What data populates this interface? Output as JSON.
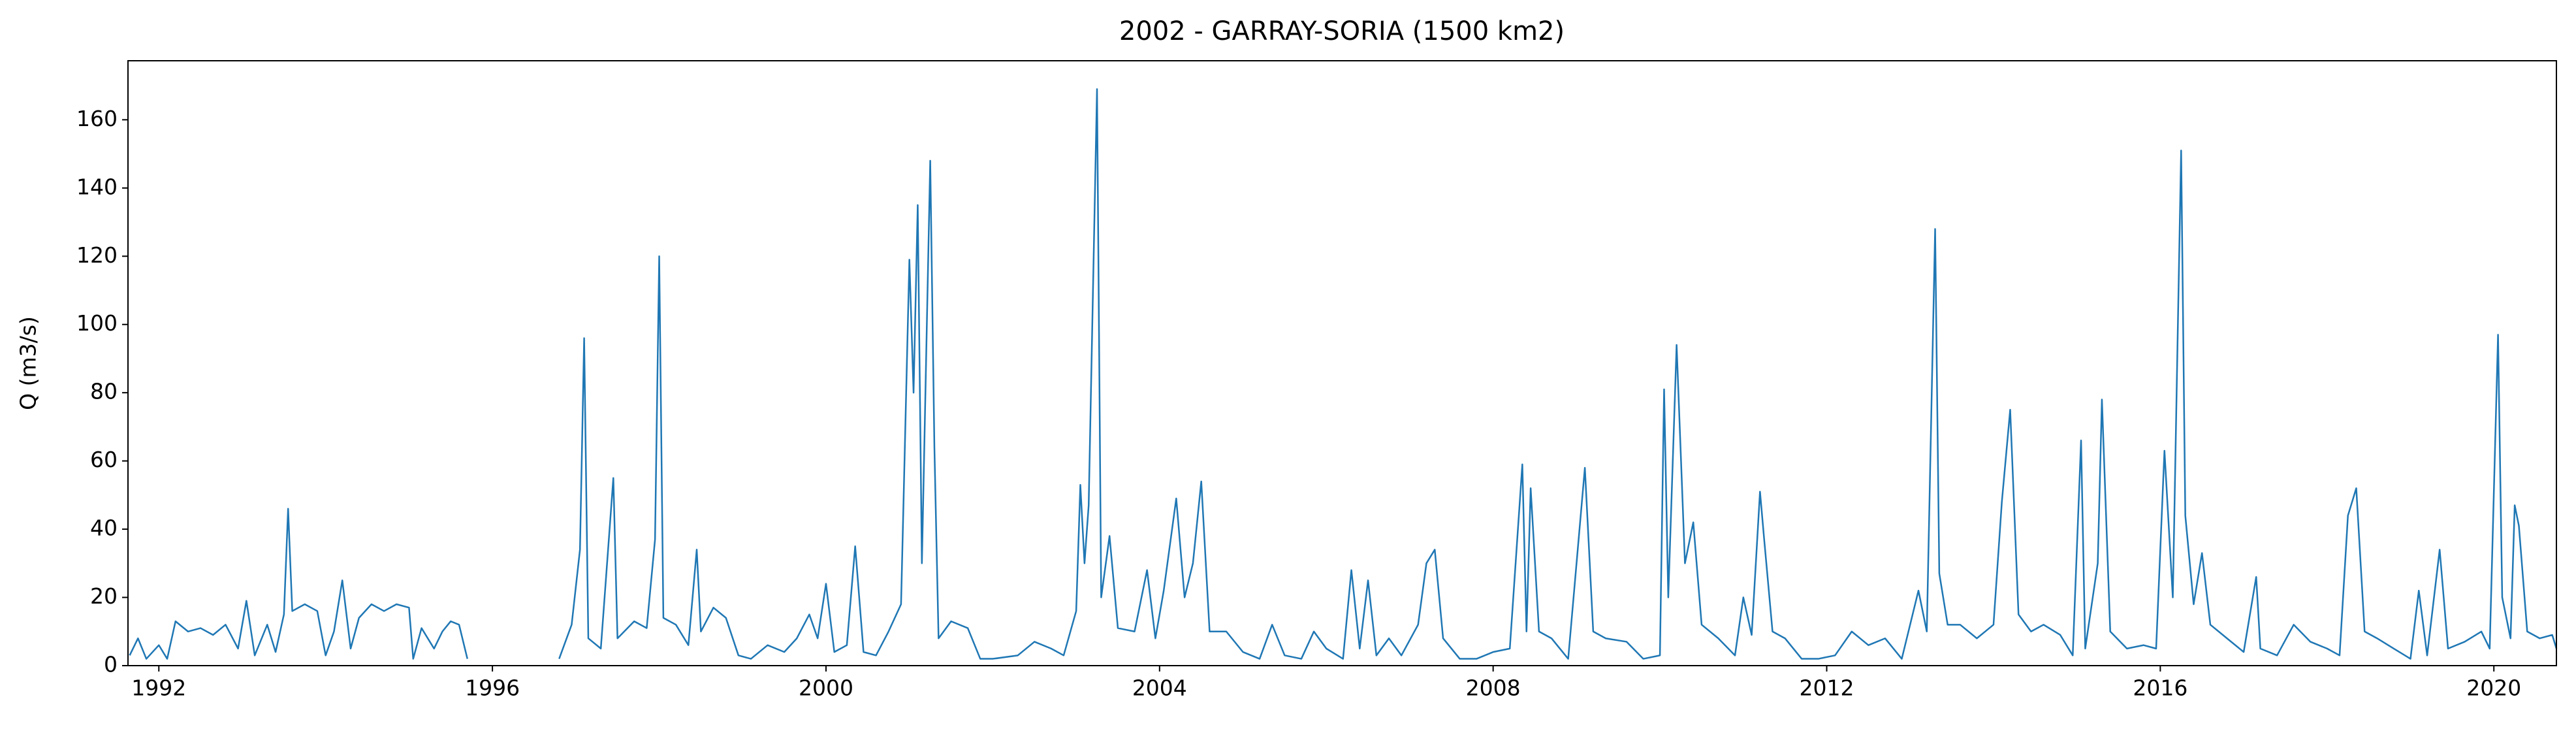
{
  "chart_data": {
    "type": "line",
    "title": "2002 - GARRAY-SORIA (1500 km2)",
    "y_label": "Q (m3/s)",
    "color": "#1f77b4",
    "grid": false,
    "x": [
      1991.65,
      1991.75,
      1991.85,
      1992.0,
      1992.1,
      1992.2,
      1992.35,
      1992.5,
      1992.65,
      1992.8,
      1992.95,
      1993.05,
      1993.15,
      1993.3,
      1993.4,
      1993.5,
      1993.55,
      1993.6,
      1993.75,
      1993.9,
      1994.0,
      1994.1,
      1994.2,
      1994.3,
      1994.4,
      1994.55,
      1994.7,
      1994.85,
      1995.0,
      1995.05,
      1995.15,
      1995.3,
      1995.4,
      1995.5,
      1995.6,
      1995.7,
      1996.2,
      1996.8,
      1996.95,
      1997.05,
      1997.1,
      1997.15,
      1997.3,
      1997.45,
      1997.5,
      1997.7,
      1997.85,
      1997.95,
      1998.0,
      1998.05,
      1998.2,
      1998.35,
      1998.45,
      1998.5,
      1998.65,
      1998.8,
      1998.95,
      1999.1,
      1999.3,
      1999.5,
      1999.65,
      1999.8,
      1999.9,
      2000.0,
      2000.1,
      2000.25,
      2000.35,
      2000.45,
      2000.6,
      2000.75,
      2000.9,
      2001.0,
      2001.05,
      2001.1,
      2001.15,
      2001.25,
      2001.3,
      2001.35,
      2001.5,
      2001.7,
      2001.85,
      2002.0,
      2002.3,
      2002.5,
      2002.7,
      2002.85,
      2003.0,
      2003.05,
      2003.1,
      2003.15,
      2003.25,
      2003.3,
      2003.4,
      2003.5,
      2003.7,
      2003.85,
      2003.95,
      2004.05,
      2004.2,
      2004.3,
      2004.4,
      2004.5,
      2004.6,
      2004.8,
      2005.0,
      2005.2,
      2005.35,
      2005.5,
      2005.7,
      2005.85,
      2006.0,
      2006.2,
      2006.3,
      2006.4,
      2006.5,
      2006.6,
      2006.75,
      2006.9,
      2007.1,
      2007.2,
      2007.3,
      2007.4,
      2007.6,
      2007.8,
      2008.0,
      2008.2,
      2008.35,
      2008.4,
      2008.45,
      2008.55,
      2008.7,
      2008.9,
      2009.1,
      2009.2,
      2009.35,
      2009.6,
      2009.8,
      2010.0,
      2010.05,
      2010.1,
      2010.2,
      2010.3,
      2010.4,
      2010.5,
      2010.7,
      2010.9,
      2011.0,
      2011.1,
      2011.2,
      2011.25,
      2011.35,
      2011.5,
      2011.7,
      2011.9,
      2012.1,
      2012.3,
      2012.5,
      2012.7,
      2012.9,
      2013.1,
      2013.2,
      2013.3,
      2013.35,
      2013.45,
      2013.6,
      2013.8,
      2014.0,
      2014.1,
      2014.2,
      2014.3,
      2014.45,
      2014.6,
      2014.8,
      2014.95,
      2015.05,
      2015.1,
      2015.25,
      2015.3,
      2015.4,
      2015.6,
      2015.8,
      2015.95,
      2016.05,
      2016.15,
      2016.25,
      2016.3,
      2016.4,
      2016.5,
      2016.6,
      2016.8,
      2017.0,
      2017.15,
      2017.2,
      2017.4,
      2017.6,
      2017.8,
      2018.0,
      2018.15,
      2018.25,
      2018.35,
      2018.45,
      2018.6,
      2018.8,
      2019.0,
      2019.1,
      2019.2,
      2019.35,
      2019.45,
      2019.65,
      2019.85,
      2019.95,
      2020.05,
      2020.1,
      2020.2,
      2020.25,
      2020.3,
      2020.4,
      2020.55,
      2020.7,
      2020.75
    ],
    "values": [
      3,
      8,
      2,
      6,
      2,
      13,
      10,
      11,
      9,
      12,
      5,
      19,
      3,
      12,
      4,
      15,
      46,
      16,
      18,
      16,
      3,
      10,
      25,
      5,
      14,
      18,
      16,
      18,
      17,
      2,
      11,
      5,
      10,
      13,
      12,
      2,
      null,
      2,
      12,
      34,
      96,
      8,
      5,
      55,
      8,
      13,
      11,
      37,
      120,
      14,
      12,
      6,
      34,
      10,
      17,
      14,
      3,
      2,
      6,
      4,
      8,
      15,
      8,
      24,
      4,
      6,
      35,
      4,
      3,
      10,
      18,
      119,
      80,
      135,
      30,
      148,
      64,
      8,
      13,
      11,
      2,
      2,
      3,
      7,
      5,
      3,
      16,
      53,
      30,
      47,
      169,
      20,
      38,
      11,
      10,
      28,
      8,
      22,
      49,
      20,
      30,
      54,
      10,
      10,
      4,
      2,
      12,
      3,
      2,
      10,
      5,
      2,
      28,
      5,
      25,
      3,
      8,
      3,
      12,
      30,
      34,
      8,
      2,
      2,
      4,
      5,
      59,
      10,
      52,
      10,
      8,
      2,
      58,
      10,
      8,
      7,
      2,
      3,
      81,
      20,
      94,
      30,
      42,
      12,
      8,
      3,
      20,
      9,
      51,
      37,
      10,
      8,
      2,
      2,
      3,
      10,
      6,
      8,
      2,
      22,
      10,
      128,
      27,
      12,
      12,
      8,
      12,
      48,
      75,
      15,
      10,
      12,
      9,
      3,
      66,
      5,
      30,
      78,
      10,
      5,
      6,
      5,
      63,
      20,
      151,
      44,
      18,
      33,
      12,
      8,
      4,
      26,
      5,
      3,
      12,
      7,
      5,
      3,
      44,
      52,
      10,
      8,
      5,
      2,
      22,
      3,
      34,
      5,
      7,
      10,
      5,
      97,
      20,
      8,
      47,
      41,
      10,
      8,
      9,
      5
    ],
    "xlim": [
      1991.63,
      2020.75
    ],
    "xticks": [
      1992,
      1996,
      2000,
      2004,
      2008,
      2012,
      2016,
      2020
    ],
    "ylim": [
      0,
      177.3
    ],
    "yticks": [
      0,
      20,
      40,
      60,
      80,
      100,
      120,
      140,
      160
    ]
  }
}
